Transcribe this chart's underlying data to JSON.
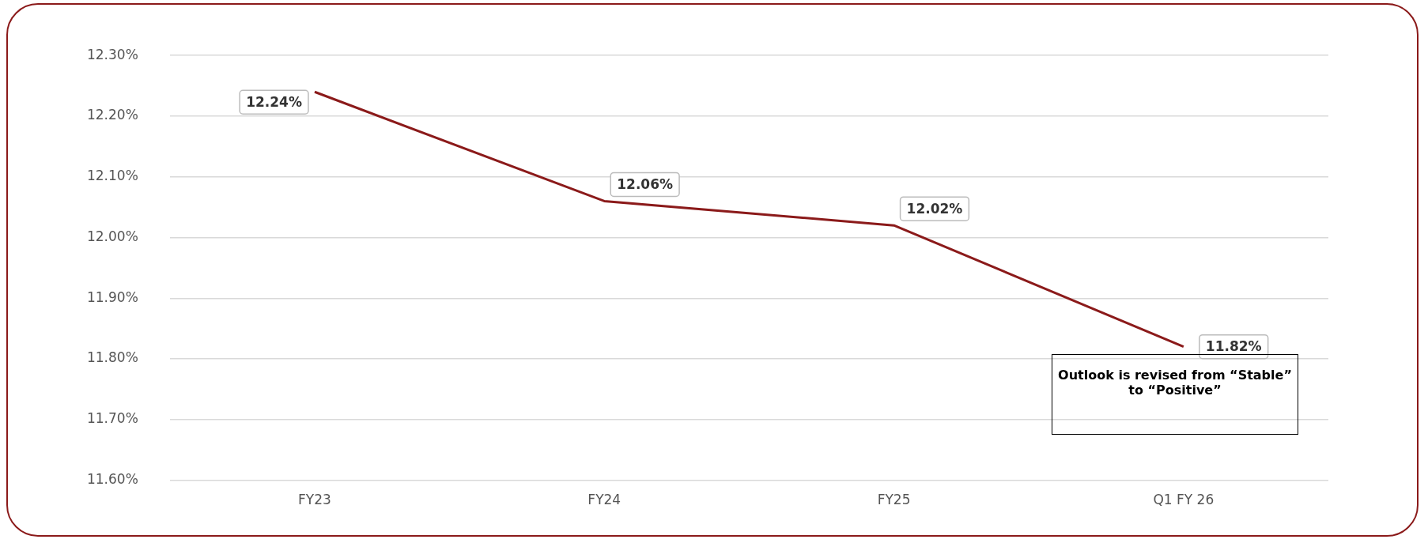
{
  "chart_data": {
    "type": "line",
    "categories": [
      "FY23",
      "FY24",
      "FY25",
      "Q1 FY 26"
    ],
    "series": [
      {
        "color": "#8b1a1a",
        "values": [
          12.24,
          12.06,
          12.02,
          11.82
        ],
        "value_labels": [
          "12.24%",
          "12.06%",
          "12.02%",
          "11.82%"
        ]
      }
    ],
    "ylim": [
      11.6,
      12.3
    ],
    "yticks": [
      {
        "value": 11.6,
        "label": "11.60%"
      },
      {
        "value": 11.7,
        "label": "11.70%"
      },
      {
        "value": 11.8,
        "label": "11.80%"
      },
      {
        "value": 11.9,
        "label": "11.90%"
      },
      {
        "value": 12.0,
        "label": "12.00%"
      },
      {
        "value": 12.1,
        "label": "12.10%"
      },
      {
        "value": 12.2,
        "label": "12.20%"
      },
      {
        "value": 12.3,
        "label": "12.30%"
      }
    ],
    "grid": "y",
    "legend": false,
    "marker": "none",
    "line_style": "solid",
    "annotations": [
      "Outlook is revised from “Stable” to “Positive”"
    ]
  }
}
